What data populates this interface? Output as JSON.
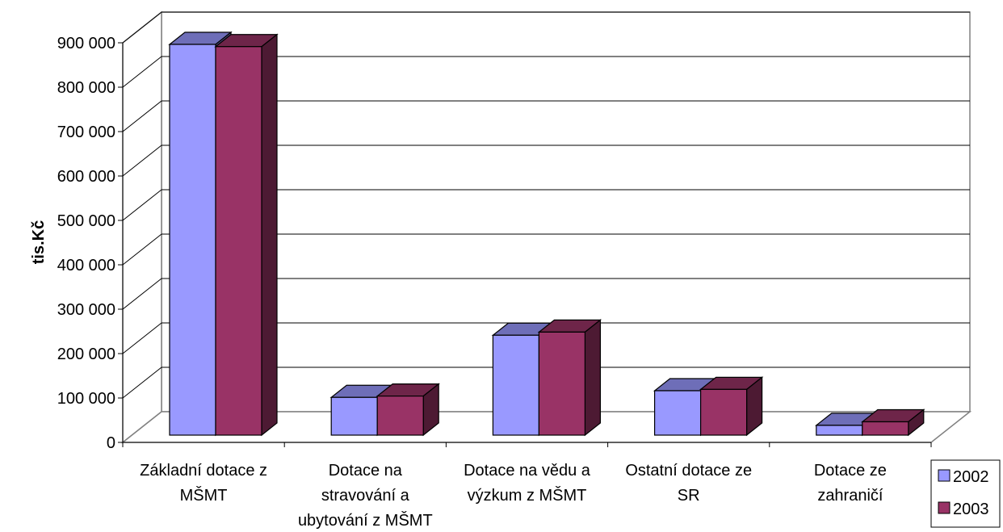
{
  "chart_data": {
    "type": "bar",
    "title": "",
    "xlabel": "",
    "ylabel": "tis.Kč",
    "categories": [
      [
        "Základní dotace z",
        "MŠMT"
      ],
      [
        "Dotace na",
        "stravování a",
        "ubytování z MŠMT"
      ],
      [
        "Dotace na vědu a",
        "výzkum z MŠMT"
      ],
      [
        "Ostatní dotace ze",
        "SR"
      ],
      [
        "Dotace ze",
        "zahraničí"
      ]
    ],
    "series": [
      {
        "name": "2002",
        "color": "#9999ff",
        "values": [
          880000,
          85000,
          225000,
          100000,
          22000
        ]
      },
      {
        "name": "2003",
        "color": "#993366",
        "values": [
          875000,
          88000,
          232000,
          103000,
          30000
        ]
      }
    ],
    "ylim": [
      0,
      900000
    ],
    "yticks": [
      0,
      100000,
      200000,
      300000,
      400000,
      500000,
      600000,
      700000,
      800000,
      900000
    ],
    "ytick_labels": [
      "0",
      "100 000",
      "200 000",
      "300 000",
      "400 000",
      "500 000",
      "600 000",
      "700 000",
      "800 000",
      "900 000"
    ],
    "grid": true,
    "legend_position": "right",
    "style": "3d-clustered-column"
  }
}
